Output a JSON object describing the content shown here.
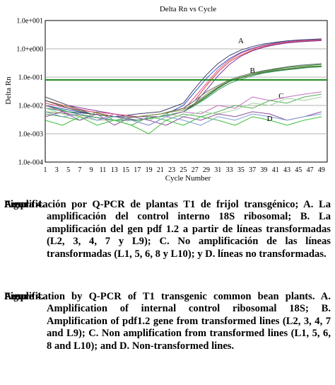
{
  "chart_data": {
    "type": "line",
    "title": "Delta Rn vs Cycle",
    "xlabel": "Cycle Number",
    "ylabel": "Delta Rn",
    "y_scale": "log",
    "ylim": [
      0.0001,
      10
    ],
    "xlim": [
      1,
      50
    ],
    "x_ticks": [
      "1",
      "3",
      "5",
      "7",
      "9",
      "11",
      "13",
      "15",
      "17",
      "19",
      "21",
      "23",
      "25",
      "27",
      "29",
      "31",
      "33",
      "35",
      "37",
      "39",
      "41",
      "43",
      "45",
      "47",
      "49"
    ],
    "y_ticks": [
      "1.0e+001",
      "1.0+e000",
      "1.0e-001",
      "1.0e-002",
      "1.0e-003",
      "1.0e-004"
    ],
    "threshold": 0.08,
    "threshold_color": "#1a8a1a",
    "grid": true,
    "annotations": [
      "A",
      "B",
      "C",
      "D"
    ],
    "series": [
      {
        "group": "A",
        "color": "#d04040",
        "x": [
          1,
          5,
          9,
          13,
          17,
          21,
          25,
          27,
          29,
          31,
          33,
          35,
          37,
          39,
          41,
          43,
          45,
          47,
          49
        ],
        "y": [
          0.015,
          0.009,
          0.006,
          0.004,
          0.004,
          0.005,
          0.008,
          0.015,
          0.05,
          0.15,
          0.35,
          0.6,
          0.9,
          1.2,
          1.45,
          1.65,
          1.8,
          1.9,
          2.0
        ]
      },
      {
        "group": "A",
        "color": "#3050c0",
        "x": [
          1,
          5,
          9,
          13,
          17,
          21,
          25,
          27,
          29,
          31,
          33,
          35,
          37,
          39,
          41,
          43,
          45,
          47,
          49
        ],
        "y": [
          0.01,
          0.007,
          0.005,
          0.004,
          0.003,
          0.004,
          0.01,
          0.03,
          0.09,
          0.22,
          0.45,
          0.75,
          1.05,
          1.35,
          1.6,
          1.8,
          1.95,
          2.05,
          2.15
        ]
      },
      {
        "group": "A",
        "color": "#8030a0",
        "x": [
          1,
          5,
          9,
          13,
          17,
          21,
          25,
          27,
          29,
          31,
          33,
          35,
          37,
          39,
          41,
          43,
          45,
          47,
          49
        ],
        "y": [
          0.02,
          0.01,
          0.007,
          0.005,
          0.004,
          0.004,
          0.006,
          0.012,
          0.035,
          0.11,
          0.28,
          0.55,
          0.85,
          1.15,
          1.4,
          1.6,
          1.75,
          1.85,
          1.95
        ]
      },
      {
        "group": "A",
        "color": "#404070",
        "x": [
          1,
          5,
          9,
          13,
          17,
          21,
          25,
          27,
          29,
          31,
          33,
          35,
          37,
          39,
          41,
          43,
          45,
          47,
          49
        ],
        "y": [
          0.008,
          0.006,
          0.005,
          0.004,
          0.005,
          0.006,
          0.012,
          0.04,
          0.12,
          0.3,
          0.58,
          0.9,
          1.2,
          1.5,
          1.7,
          1.9,
          2.05,
          2.15,
          2.25
        ]
      },
      {
        "group": "A",
        "color": "#e05080",
        "x": [
          1,
          5,
          9,
          13,
          17,
          21,
          25,
          27,
          29,
          31,
          33,
          35,
          37,
          39,
          41,
          43,
          45,
          47,
          49
        ],
        "y": [
          0.012,
          0.008,
          0.006,
          0.005,
          0.004,
          0.005,
          0.007,
          0.02,
          0.06,
          0.18,
          0.4,
          0.7,
          1.0,
          1.3,
          1.55,
          1.75,
          1.9,
          2.0,
          2.1
        ]
      },
      {
        "group": "B",
        "color": "#2a8a2a",
        "x": [
          1,
          5,
          9,
          13,
          17,
          21,
          25,
          27,
          29,
          31,
          33,
          35,
          37,
          39,
          41,
          43,
          45,
          47,
          49
        ],
        "y": [
          0.01,
          0.006,
          0.004,
          0.003,
          0.003,
          0.004,
          0.006,
          0.01,
          0.02,
          0.04,
          0.07,
          0.1,
          0.13,
          0.16,
          0.19,
          0.22,
          0.24,
          0.26,
          0.28
        ]
      },
      {
        "group": "B",
        "color": "#607070",
        "x": [
          1,
          5,
          9,
          13,
          17,
          21,
          25,
          27,
          29,
          31,
          33,
          35,
          37,
          39,
          41,
          43,
          45,
          47,
          49
        ],
        "y": [
          0.02,
          0.01,
          0.005,
          0.004,
          0.004,
          0.005,
          0.008,
          0.015,
          0.03,
          0.05,
          0.08,
          0.11,
          0.14,
          0.17,
          0.2,
          0.23,
          0.26,
          0.28,
          0.3
        ]
      },
      {
        "group": "B",
        "color": "#80a040",
        "x": [
          1,
          5,
          9,
          13,
          17,
          21,
          25,
          27,
          29,
          31,
          33,
          35,
          37,
          39,
          41,
          43,
          45,
          47,
          49
        ],
        "y": [
          0.006,
          0.005,
          0.004,
          0.003,
          0.004,
          0.005,
          0.007,
          0.012,
          0.025,
          0.045,
          0.075,
          0.1,
          0.13,
          0.15,
          0.18,
          0.2,
          0.22,
          0.24,
          0.25
        ]
      },
      {
        "group": "B",
        "color": "#406040",
        "x": [
          1,
          5,
          9,
          13,
          17,
          21,
          25,
          27,
          29,
          31,
          33,
          35,
          37,
          39,
          41,
          43,
          45,
          47,
          49
        ],
        "y": [
          0.015,
          0.008,
          0.005,
          0.004,
          0.003,
          0.004,
          0.006,
          0.011,
          0.022,
          0.042,
          0.07,
          0.095,
          0.12,
          0.145,
          0.17,
          0.19,
          0.21,
          0.23,
          0.24
        ]
      },
      {
        "group": "B",
        "color": "#30a060",
        "x": [
          1,
          5,
          9,
          13,
          17,
          21,
          25,
          27,
          29,
          31,
          33,
          35,
          37,
          39,
          41,
          43,
          45,
          47,
          49
        ],
        "y": [
          0.008,
          0.006,
          0.004,
          0.003,
          0.003,
          0.004,
          0.006,
          0.01,
          0.018,
          0.035,
          0.06,
          0.085,
          0.11,
          0.14,
          0.16,
          0.18,
          0.2,
          0.22,
          0.23
        ]
      },
      {
        "group": "C",
        "color": "#c070c0",
        "x": [
          1,
          4,
          7,
          10,
          13,
          16,
          19,
          22,
          25,
          28,
          31,
          34,
          37,
          40,
          43,
          46,
          49
        ],
        "y": [
          0.01,
          0.006,
          0.004,
          0.003,
          0.005,
          0.003,
          0.002,
          0.004,
          0.006,
          0.005,
          0.01,
          0.008,
          0.02,
          0.015,
          0.02,
          0.025,
          0.03
        ]
      },
      {
        "group": "C",
        "color": "#50b050",
        "x": [
          1,
          4,
          7,
          10,
          13,
          16,
          19,
          22,
          25,
          28,
          31,
          34,
          37,
          40,
          43,
          46,
          49
        ],
        "y": [
          0.005,
          0.004,
          0.003,
          0.006,
          0.003,
          0.002,
          0.004,
          0.003,
          0.005,
          0.004,
          0.006,
          0.01,
          0.008,
          0.015,
          0.012,
          0.02,
          0.025
        ]
      },
      {
        "group": "C",
        "color": "#a0d0a0",
        "x": [
          1,
          4,
          7,
          10,
          13,
          16,
          19,
          22,
          25,
          28,
          31,
          34,
          37,
          40,
          43,
          46,
          49
        ],
        "y": [
          0.008,
          0.005,
          0.004,
          0.003,
          0.003,
          0.004,
          0.003,
          0.005,
          0.004,
          0.006,
          0.005,
          0.007,
          0.012,
          0.01,
          0.018,
          0.015,
          0.02
        ]
      },
      {
        "group": "D",
        "color": "#9050a0",
        "x": [
          1,
          4,
          7,
          10,
          13,
          16,
          19,
          22,
          25,
          28,
          31,
          34,
          37,
          40,
          43,
          46,
          49
        ],
        "y": [
          0.004,
          0.006,
          0.003,
          0.005,
          0.002,
          0.004,
          0.003,
          0.002,
          0.004,
          0.003,
          0.005,
          0.004,
          0.006,
          0.005,
          0.003,
          0.004,
          0.006
        ]
      },
      {
        "group": "D",
        "color": "#40c040",
        "x": [
          1,
          4,
          7,
          10,
          13,
          16,
          19,
          22,
          25,
          28,
          31,
          34,
          37,
          40,
          43,
          46,
          49
        ],
        "y": [
          0.003,
          0.002,
          0.004,
          0.002,
          0.003,
          0.002,
          0.001,
          0.003,
          0.002,
          0.004,
          0.003,
          0.002,
          0.004,
          0.003,
          0.002,
          0.003,
          0.004
        ]
      },
      {
        "group": "D",
        "color": "#80a0d0",
        "x": [
          1,
          4,
          7,
          10,
          13,
          16,
          19,
          22,
          25,
          28,
          31,
          34,
          37,
          40,
          43,
          46,
          49
        ],
        "y": [
          0.006,
          0.004,
          0.005,
          0.003,
          0.004,
          0.003,
          0.002,
          0.004,
          0.003,
          0.002,
          0.004,
          0.003,
          0.005,
          0.004,
          0.003,
          0.004,
          0.005
        ]
      }
    ]
  },
  "caption_es": {
    "label": "Figura 4.",
    "text": "Amplificación por Q-PCR de plantas T1 de frijol transgénico; A. La amplificación del control interno 18S ribosomal; B. La amplificación del gen pdf 1.2 a partir de líneas transformadas (L2, 3, 4, 7 y L9); C. No amplificación de las líneas transformadas (L1, 5, 6, 8 y L10); y D. líneas no transformadas."
  },
  "caption_en": {
    "label": "Figure 4.",
    "text": "Amplification by Q-PCR of T1 transgenic common bean plants. A. Amplification of internal control ribosomal 18S; B. Amplification of pdf1.2 gene from transformed lines (L2, 3, 4, 7 and L9); C. Non amplification from transformed lines (L1, 5, 6, 8 and L10); and D. Non-transformed lines."
  }
}
